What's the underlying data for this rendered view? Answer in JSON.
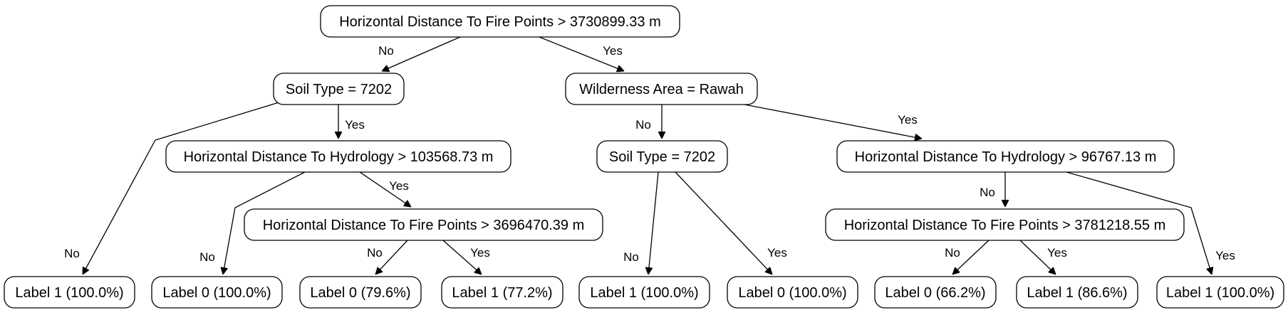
{
  "nodes": {
    "n0": "Horizontal Distance To Fire Points > 3730899.33 m",
    "n1": "Soil Type = 7202",
    "n2": "Wilderness Area = Rawah",
    "n3": "Horizontal Distance To Hydrology > 103568.73 m",
    "n4": "Soil Type = 7202",
    "n5": "Horizontal Distance To Hydrology > 96767.13 m",
    "n6": "Horizontal Distance To Fire Points > 3696470.39 m",
    "n7": "Horizontal Distance To Fire Points > 3781218.55 m",
    "l1": "Label 1 (100.0%)",
    "l2": "Label 0 (100.0%)",
    "l3": "Label 0 (79.6%)",
    "l4": "Label 1 (77.2%)",
    "l5": "Label 1 (100.0%)",
    "l6": "Label 0 (100.0%)",
    "l7": "Label 0 (66.2%)",
    "l8": "Label 1 (86.6%)",
    "l9": "Label 1 (100.0%)"
  },
  "edges": [
    {
      "from": "n0",
      "to": "n1",
      "label": "No"
    },
    {
      "from": "n0",
      "to": "n2",
      "label": "Yes"
    },
    {
      "from": "n1",
      "to": "l1",
      "label": "No"
    },
    {
      "from": "n1",
      "to": "n3",
      "label": "Yes"
    },
    {
      "from": "n3",
      "to": "l2",
      "label": "No"
    },
    {
      "from": "n3",
      "to": "n6",
      "label": "Yes"
    },
    {
      "from": "n6",
      "to": "l3",
      "label": "No"
    },
    {
      "from": "n6",
      "to": "l4",
      "label": "Yes"
    },
    {
      "from": "n2",
      "to": "n4",
      "label": "No"
    },
    {
      "from": "n2",
      "to": "n5",
      "label": "Yes"
    },
    {
      "from": "n4",
      "to": "l5",
      "label": "No"
    },
    {
      "from": "n4",
      "to": "l6",
      "label": "Yes"
    },
    {
      "from": "n5",
      "to": "n7",
      "label": "No"
    },
    {
      "from": "n5",
      "to": "l9",
      "label": "Yes"
    },
    {
      "from": "n7",
      "to": "l7",
      "label": "No"
    },
    {
      "from": "n7",
      "to": "l8",
      "label": "Yes"
    }
  ]
}
